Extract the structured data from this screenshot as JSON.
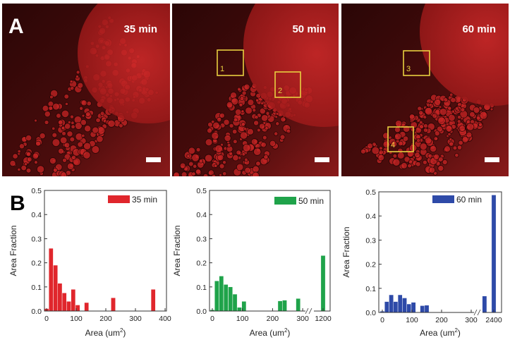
{
  "panel_a": {
    "label": "A",
    "images": [
      {
        "time": "35 min",
        "boxes": []
      },
      {
        "time": "50 min",
        "boxes": [
          "1",
          "2"
        ]
      },
      {
        "time": "60 min",
        "boxes": [
          "3",
          "4"
        ]
      }
    ],
    "box_color": "#e8d040"
  },
  "panel_b": {
    "label": "B"
  },
  "chart_data": [
    {
      "type": "bar",
      "legend": "35 min",
      "color": "#e0262c",
      "xlabel": "Area (um²)",
      "xlabel_base": "Area (um",
      "xlabel_sup": "2",
      "xlabel_end": ")",
      "ylabel": "Area Fraction",
      "xlim": [
        -10,
        400
      ],
      "ylim": [
        0,
        0.5
      ],
      "x_ticks": [
        "0",
        "100",
        "200",
        "300",
        "400"
      ],
      "x_tick_values": [
        0,
        100,
        200,
        300,
        400
      ],
      "y_ticks": [
        "0.0",
        "0.1",
        "0.2",
        "0.3",
        "0.4",
        "0.5"
      ],
      "x": [
        0,
        15,
        30,
        45,
        60,
        75,
        90,
        105,
        135,
        225,
        360
      ],
      "values": [
        0.01,
        0.26,
        0.19,
        0.115,
        0.075,
        0.04,
        0.09,
        0.025,
        0.035,
        0.055,
        0.09
      ],
      "legend_position": "top-right"
    },
    {
      "type": "bar",
      "legend": "50 min",
      "color": "#1fa34a",
      "xlabel": "Area (um²)",
      "xlabel_base": "Area (um",
      "xlabel_sup": "2",
      "xlabel_end": ")",
      "ylabel": "Area Fraction",
      "ylim": [
        0,
        0.5
      ],
      "axis_break": [
        300,
        1200
      ],
      "x_ticks": [
        "0",
        "100",
        "200",
        "300",
        "1200"
      ],
      "x_tick_values": [
        0,
        100,
        200,
        300,
        1200
      ],
      "y_ticks": [
        "0.0",
        "0.1",
        "0.2",
        "0.3",
        "0.4",
        "0.5"
      ],
      "x": [
        0,
        15,
        30,
        45,
        60,
        75,
        90,
        105,
        225,
        240,
        285,
        1200
      ],
      "values": [
        0.005,
        0.125,
        0.145,
        0.11,
        0.1,
        0.07,
        0.015,
        0.04,
        0.042,
        0.045,
        0.052,
        0.23
      ],
      "legend_position": "top-right"
    },
    {
      "type": "bar",
      "legend": "60 min",
      "color": "#2e4aa8",
      "xlabel": "Area (um²)",
      "xlabel_base": "Area (um",
      "xlabel_sup": "2",
      "xlabel_end": ")",
      "ylabel": "Area Fraction",
      "ylim": [
        0,
        0.5
      ],
      "axis_break": [
        345,
        2400
      ],
      "x_ticks": [
        "0",
        "100",
        "200",
        "300",
        "2400"
      ],
      "x_tick_values": [
        0,
        100,
        200,
        300,
        2400
      ],
      "y_ticks": [
        "0.0",
        "0.1",
        "0.2",
        "0.3",
        "0.4",
        "0.5"
      ],
      "x": [
        0,
        15,
        30,
        45,
        60,
        75,
        90,
        105,
        135,
        150,
        345,
        2400
      ],
      "values": [
        0.005,
        0.045,
        0.073,
        0.045,
        0.073,
        0.06,
        0.035,
        0.042,
        0.028,
        0.03,
        0.068,
        0.487
      ],
      "legend_position": "top-right"
    }
  ]
}
